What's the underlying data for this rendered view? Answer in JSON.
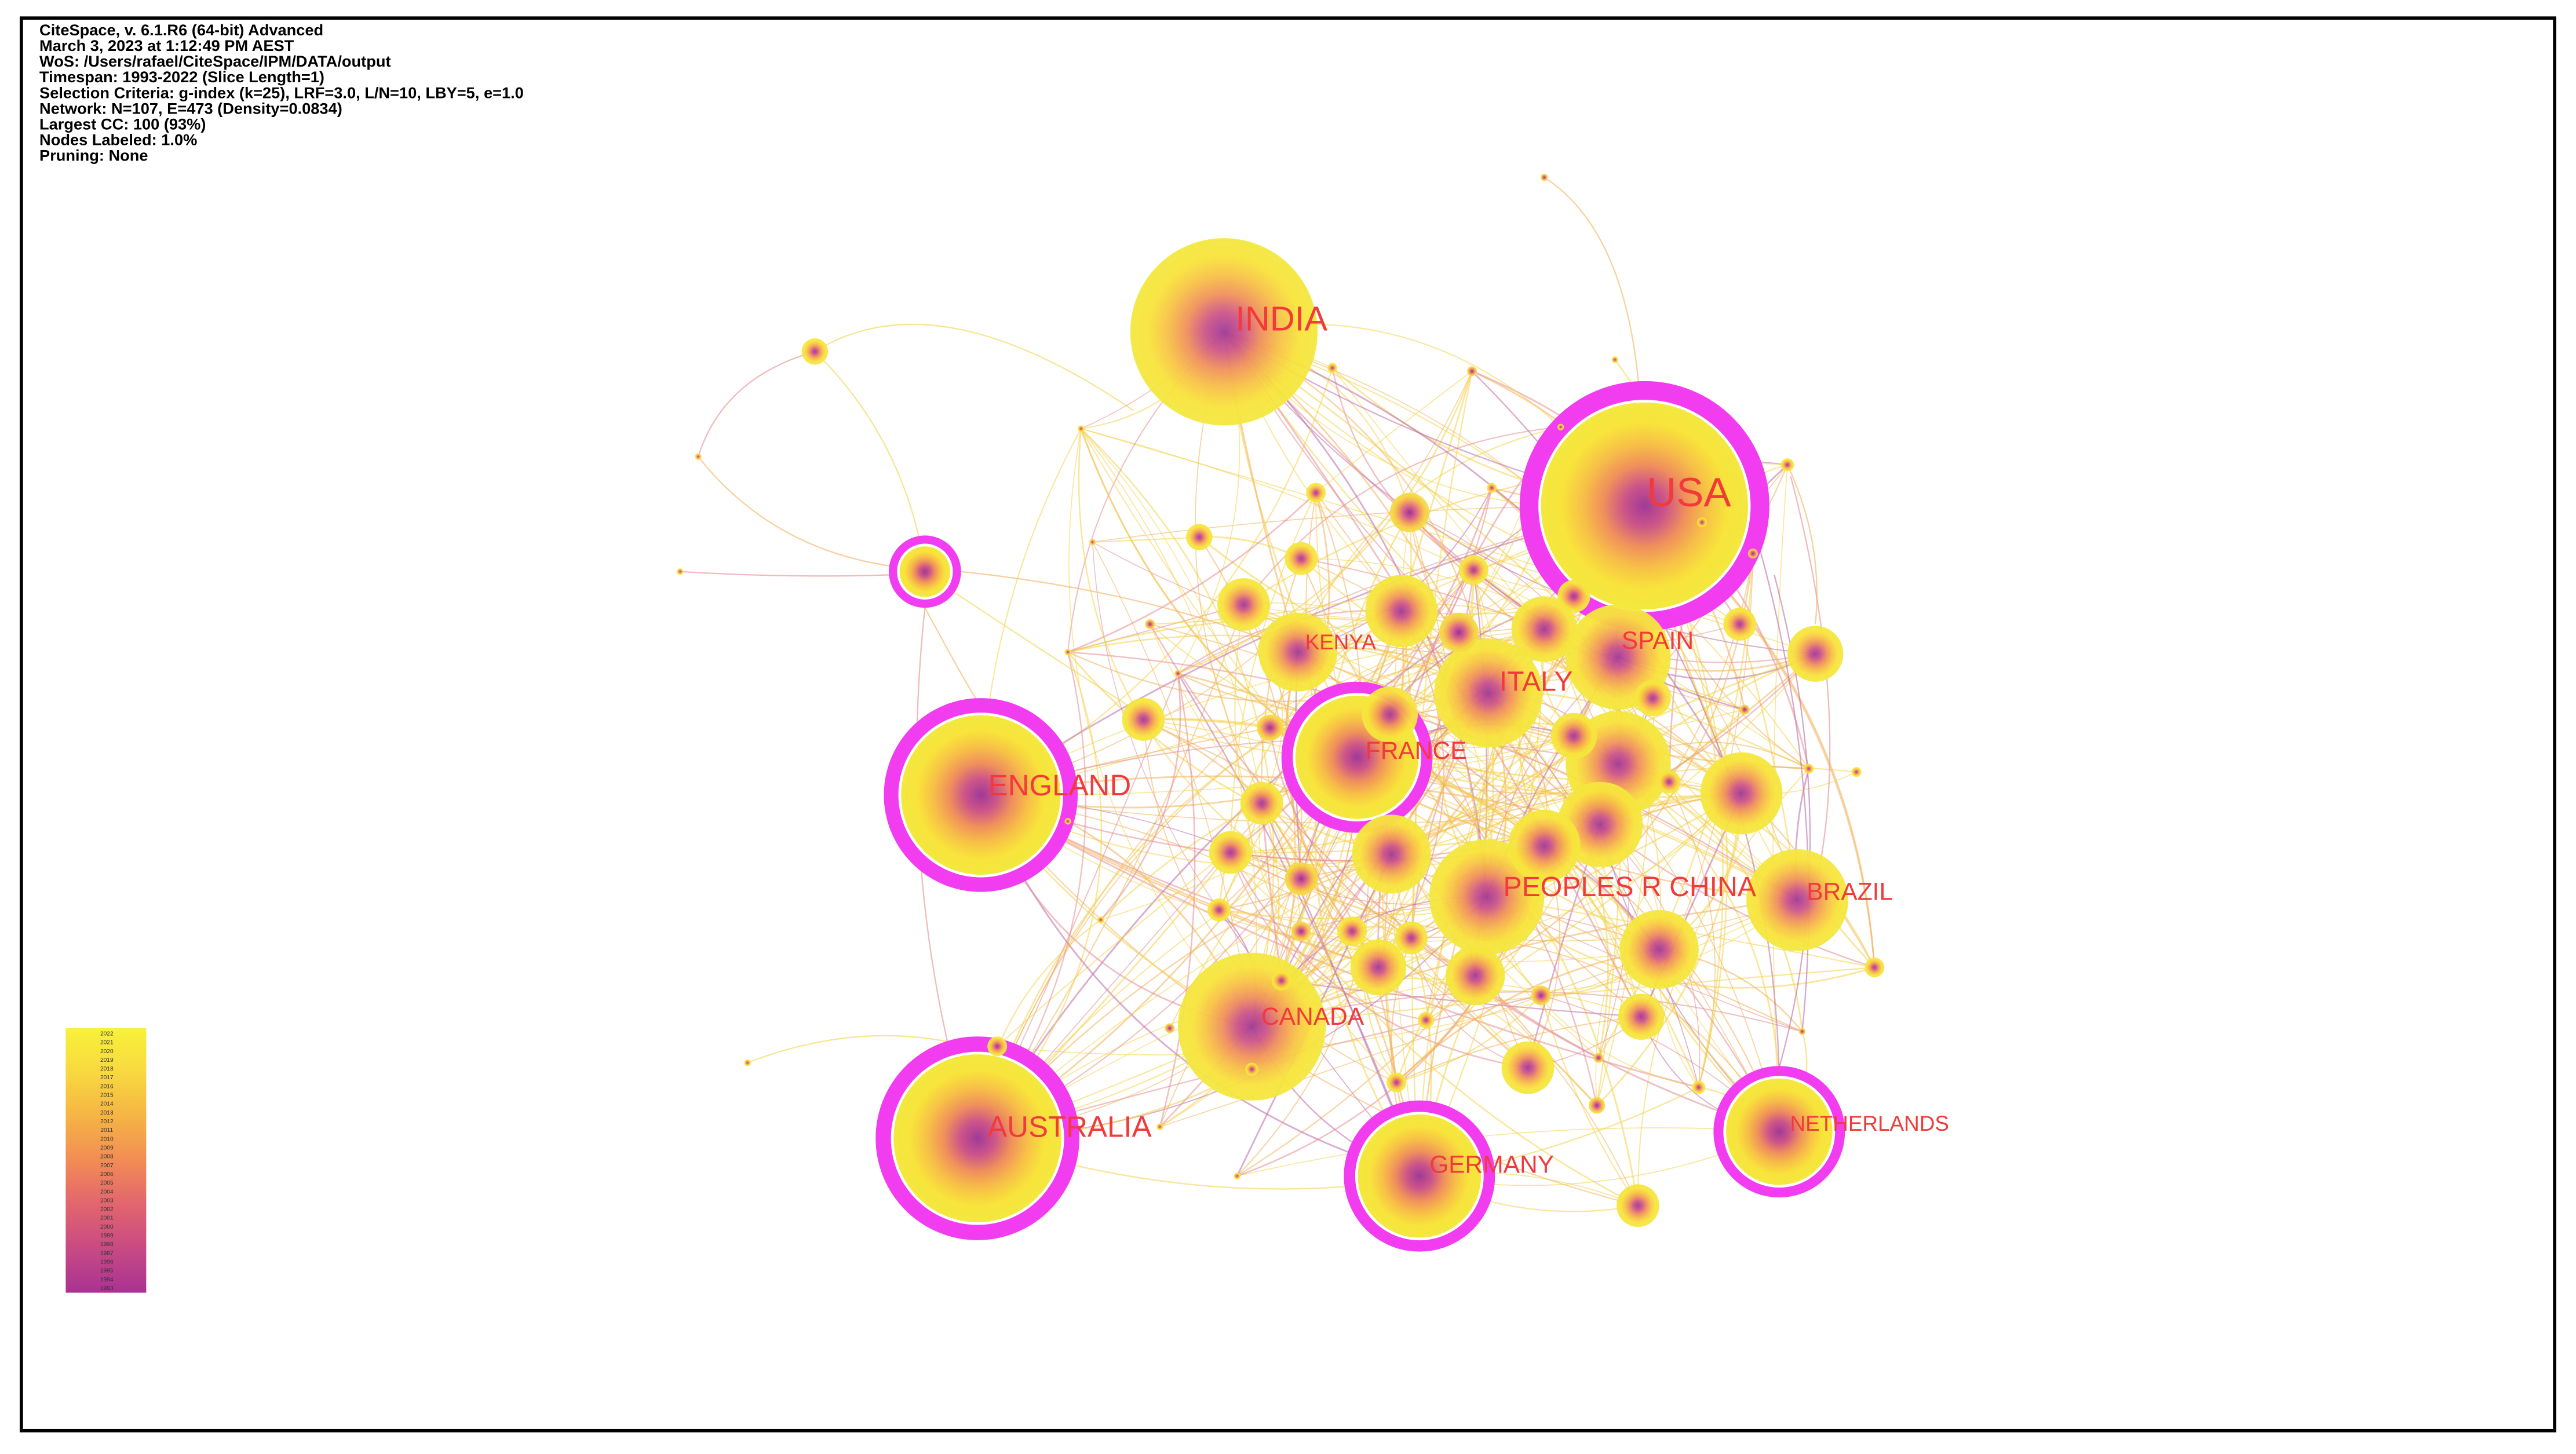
{
  "header": {
    "lines": [
      "CiteSpace, v. 6.1.R6 (64-bit) Advanced",
      "March 3, 2023 at 1:12:49 PM AEST",
      "WoS: /Users/rafael/CiteSpace/IPM/DATA/output",
      "Timespan: 1993-2022 (Slice Length=1)",
      "Selection Criteria: g-index (k=25), LRF=3.0, L/N=10, LBY=5, e=1.0",
      "Network: N=107, E=473 (Density=0.0834)",
      "Largest CC: 100 (93%)",
      "Nodes Labeled: 1.0%",
      "Pruning: None"
    ]
  },
  "legend": {
    "years": [
      "2022",
      "2021",
      "2020",
      "2019",
      "2018",
      "2017",
      "2016",
      "2015",
      "2014",
      "2013",
      "2012",
      "2011",
      "2010",
      "2009",
      "2008",
      "2007",
      "2006",
      "2005",
      "2004",
      "2003",
      "2002",
      "2001",
      "2000",
      "1999",
      "1998",
      "1997",
      "1996",
      "1995",
      "1994",
      "1993"
    ],
    "gradient_colors": [
      "#f8f23a",
      "#f8d83f",
      "#f6b445",
      "#f28c55",
      "#e2656e",
      "#c84a84",
      "#a93292"
    ]
  },
  "colors": {
    "background": "#ffffff",
    "frame": "#000000",
    "label": "#f23a3a",
    "centrality_ring": "#f23cf0",
    "ring_gap": "#ffffff",
    "node_gradient": [
      "#a03a98",
      "#cc5489",
      "#f0905c",
      "#f7c047",
      "#f8e33b",
      "#f3e83f"
    ],
    "node_gradient_alt": [
      "#8f2f9a",
      "#c2478e",
      "#e2707a",
      "#f3a652",
      "#f6d043",
      "#f4df45"
    ],
    "edges": [
      "#f4d24b",
      "#f2b05a",
      "#e58c93",
      "#bb6aa8"
    ]
  },
  "nodes": [
    {
      "label": "INDIA",
      "ring": false
    },
    {
      "label": "USA",
      "ring": true
    },
    {
      "label": "SPAIN",
      "ring": false
    },
    {
      "label": "KENYA",
      "ring": false
    },
    {
      "label": "ITALY",
      "ring": false
    },
    {
      "label": "FRANCE",
      "ring": true
    },
    {
      "label": "ENGLAND",
      "ring": true
    },
    {
      "label": "PEOPLES R CHINA",
      "ring": false
    },
    {
      "label": "BRAZIL",
      "ring": false
    },
    {
      "label": "CANADA",
      "ring": false
    },
    {
      "label": "AUSTRALIA",
      "ring": true
    },
    {
      "label": "GERMANY",
      "ring": true
    },
    {
      "label": "NETHERLANDS",
      "ring": true
    }
  ]
}
